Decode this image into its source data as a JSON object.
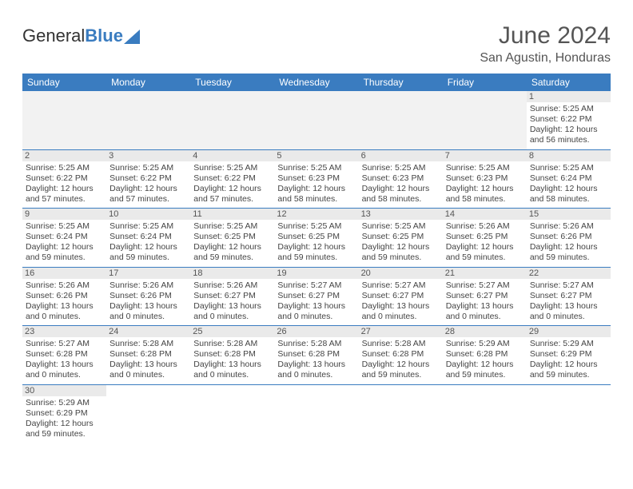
{
  "logo": {
    "text_general": "General",
    "text_blue": "Blue",
    "sail_color": "#3a7cc0"
  },
  "header": {
    "month_title": "June 2024",
    "location": "San Agustin, Honduras"
  },
  "calendar": {
    "header_bg": "#3a7cc0",
    "header_fg": "#ffffff",
    "daynum_bg": "#eaeaea",
    "border_color": "#3a7cc0",
    "empty_lead_bg": "#f2f2f2",
    "day_headers": [
      "Sunday",
      "Monday",
      "Tuesday",
      "Wednesday",
      "Thursday",
      "Friday",
      "Saturday"
    ],
    "weeks": [
      [
        {
          "empty": "lead"
        },
        {
          "empty": "lead"
        },
        {
          "empty": "lead"
        },
        {
          "empty": "lead"
        },
        {
          "empty": "lead"
        },
        {
          "empty": "lead"
        },
        {
          "day": "1",
          "sunrise": "5:25 AM",
          "sunset": "6:22 PM",
          "daylight": "12 hours and 56 minutes."
        }
      ],
      [
        {
          "day": "2",
          "sunrise": "5:25 AM",
          "sunset": "6:22 PM",
          "daylight": "12 hours and 57 minutes."
        },
        {
          "day": "3",
          "sunrise": "5:25 AM",
          "sunset": "6:22 PM",
          "daylight": "12 hours and 57 minutes."
        },
        {
          "day": "4",
          "sunrise": "5:25 AM",
          "sunset": "6:22 PM",
          "daylight": "12 hours and 57 minutes."
        },
        {
          "day": "5",
          "sunrise": "5:25 AM",
          "sunset": "6:23 PM",
          "daylight": "12 hours and 58 minutes."
        },
        {
          "day": "6",
          "sunrise": "5:25 AM",
          "sunset": "6:23 PM",
          "daylight": "12 hours and 58 minutes."
        },
        {
          "day": "7",
          "sunrise": "5:25 AM",
          "sunset": "6:23 PM",
          "daylight": "12 hours and 58 minutes."
        },
        {
          "day": "8",
          "sunrise": "5:25 AM",
          "sunset": "6:24 PM",
          "daylight": "12 hours and 58 minutes."
        }
      ],
      [
        {
          "day": "9",
          "sunrise": "5:25 AM",
          "sunset": "6:24 PM",
          "daylight": "12 hours and 59 minutes."
        },
        {
          "day": "10",
          "sunrise": "5:25 AM",
          "sunset": "6:24 PM",
          "daylight": "12 hours and 59 minutes."
        },
        {
          "day": "11",
          "sunrise": "5:25 AM",
          "sunset": "6:25 PM",
          "daylight": "12 hours and 59 minutes."
        },
        {
          "day": "12",
          "sunrise": "5:25 AM",
          "sunset": "6:25 PM",
          "daylight": "12 hours and 59 minutes."
        },
        {
          "day": "13",
          "sunrise": "5:25 AM",
          "sunset": "6:25 PM",
          "daylight": "12 hours and 59 minutes."
        },
        {
          "day": "14",
          "sunrise": "5:26 AM",
          "sunset": "6:25 PM",
          "daylight": "12 hours and 59 minutes."
        },
        {
          "day": "15",
          "sunrise": "5:26 AM",
          "sunset": "6:26 PM",
          "daylight": "12 hours and 59 minutes."
        }
      ],
      [
        {
          "day": "16",
          "sunrise": "5:26 AM",
          "sunset": "6:26 PM",
          "daylight": "13 hours and 0 minutes."
        },
        {
          "day": "17",
          "sunrise": "5:26 AM",
          "sunset": "6:26 PM",
          "daylight": "13 hours and 0 minutes."
        },
        {
          "day": "18",
          "sunrise": "5:26 AM",
          "sunset": "6:27 PM",
          "daylight": "13 hours and 0 minutes."
        },
        {
          "day": "19",
          "sunrise": "5:27 AM",
          "sunset": "6:27 PM",
          "daylight": "13 hours and 0 minutes."
        },
        {
          "day": "20",
          "sunrise": "5:27 AM",
          "sunset": "6:27 PM",
          "daylight": "13 hours and 0 minutes."
        },
        {
          "day": "21",
          "sunrise": "5:27 AM",
          "sunset": "6:27 PM",
          "daylight": "13 hours and 0 minutes."
        },
        {
          "day": "22",
          "sunrise": "5:27 AM",
          "sunset": "6:27 PM",
          "daylight": "13 hours and 0 minutes."
        }
      ],
      [
        {
          "day": "23",
          "sunrise": "5:27 AM",
          "sunset": "6:28 PM",
          "daylight": "13 hours and 0 minutes."
        },
        {
          "day": "24",
          "sunrise": "5:28 AM",
          "sunset": "6:28 PM",
          "daylight": "13 hours and 0 minutes."
        },
        {
          "day": "25",
          "sunrise": "5:28 AM",
          "sunset": "6:28 PM",
          "daylight": "13 hours and 0 minutes."
        },
        {
          "day": "26",
          "sunrise": "5:28 AM",
          "sunset": "6:28 PM",
          "daylight": "13 hours and 0 minutes."
        },
        {
          "day": "27",
          "sunrise": "5:28 AM",
          "sunset": "6:28 PM",
          "daylight": "12 hours and 59 minutes."
        },
        {
          "day": "28",
          "sunrise": "5:29 AM",
          "sunset": "6:28 PM",
          "daylight": "12 hours and 59 minutes."
        },
        {
          "day": "29",
          "sunrise": "5:29 AM",
          "sunset": "6:29 PM",
          "daylight": "12 hours and 59 minutes."
        }
      ],
      [
        {
          "day": "30",
          "sunrise": "5:29 AM",
          "sunset": "6:29 PM",
          "daylight": "12 hours and 59 minutes."
        },
        {
          "empty": "trail"
        },
        {
          "empty": "trail"
        },
        {
          "empty": "trail"
        },
        {
          "empty": "trail"
        },
        {
          "empty": "trail"
        },
        {
          "empty": "trail"
        }
      ]
    ],
    "labels": {
      "sunrise": "Sunrise:",
      "sunset": "Sunset:",
      "daylight": "Daylight:"
    }
  }
}
